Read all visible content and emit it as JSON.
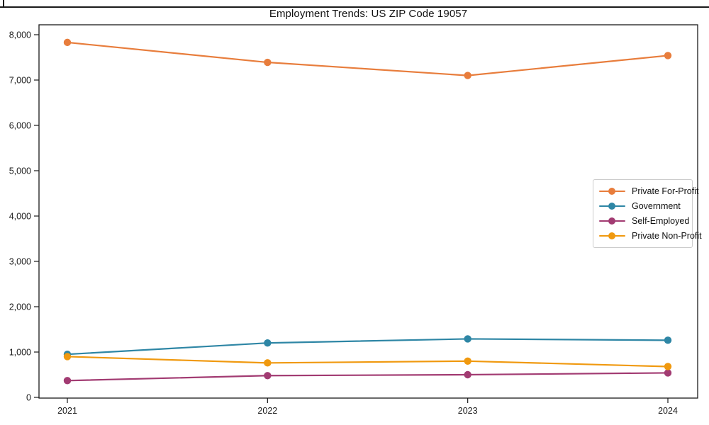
{
  "window": {
    "top_edge_note": "thin dark horizontal rule across top of image"
  },
  "colors": {
    "background": "#ffffff",
    "spine": "#1a1a1a",
    "tick_label": "#1a1a1a",
    "title_text": "#111111",
    "legend_border": "#cccccc"
  },
  "chart_data": {
    "type": "line",
    "title": "Employment Trends: US ZIP Code 19057",
    "xlabel": "",
    "ylabel": "",
    "grid": false,
    "legend_position": "right",
    "x": [
      2021,
      2022,
      2023,
      2024
    ],
    "x_labels": [
      "2021",
      "2022",
      "2023",
      "2024"
    ],
    "ylim": [
      0,
      8220
    ],
    "yticks": [
      0,
      1000,
      2000,
      3000,
      4000,
      5000,
      6000,
      7000,
      8000
    ],
    "ytick_labels": [
      "0",
      "1,000",
      "2,000",
      "3,000",
      "4,000",
      "5,000",
      "6,000",
      "7,000",
      "8,000"
    ],
    "series": [
      {
        "name": "Private For-Profit",
        "color": "#E87D3C",
        "values": [
          7830,
          7390,
          7100,
          7540
        ]
      },
      {
        "name": "Government",
        "color": "#2E86A5",
        "values": [
          950,
          1200,
          1290,
          1260
        ]
      },
      {
        "name": "Self-Employed",
        "color": "#A23B72",
        "values": [
          370,
          480,
          500,
          540
        ]
      },
      {
        "name": "Private Non-Profit",
        "color": "#F0990F",
        "values": [
          900,
          760,
          800,
          680
        ]
      }
    ]
  }
}
